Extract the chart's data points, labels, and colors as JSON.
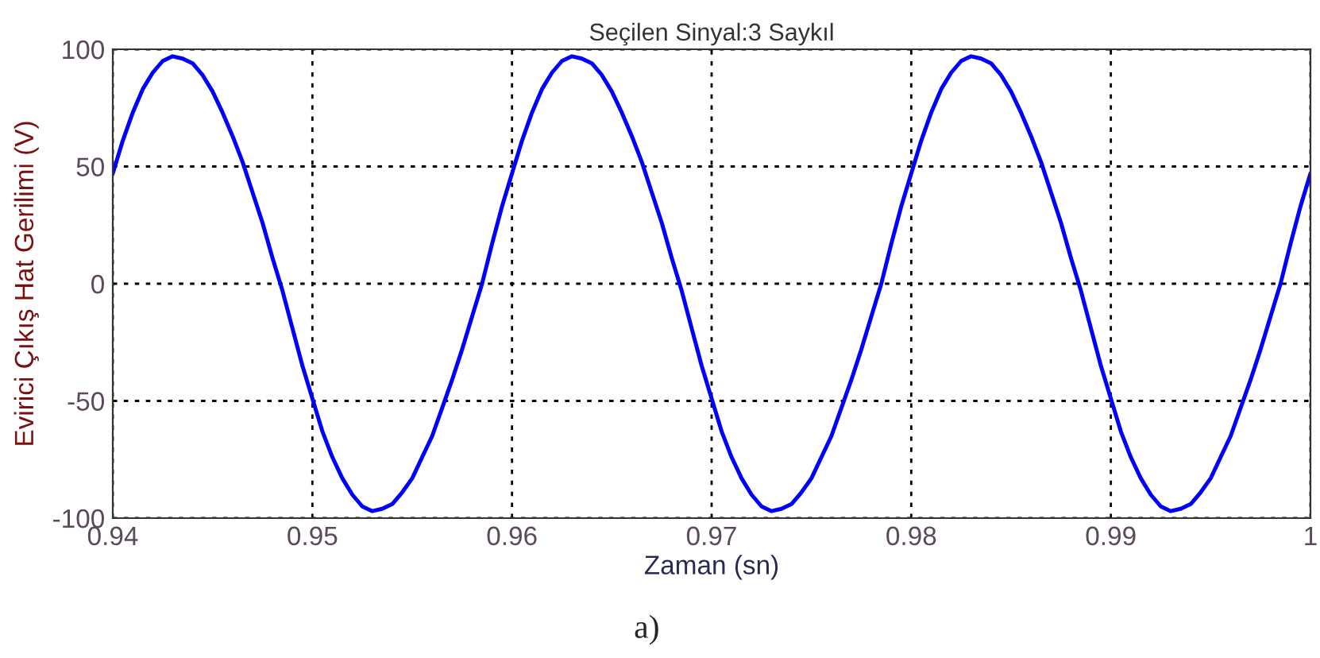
{
  "chart_data": {
    "type": "line",
    "title": "Seçilen Sinyal:3 Saykıl",
    "xlabel": "Zaman (sn)",
    "ylabel": "Evirici Çıkış Hat Gerilimi (V)",
    "x": [
      0.94,
      0.9405,
      0.941,
      0.9415,
      0.942,
      0.9425,
      0.943,
      0.9435,
      0.944,
      0.9445,
      0.945,
      0.9455,
      0.946,
      0.9465,
      0.947,
      0.9475,
      0.948,
      0.9485,
      0.949,
      0.9495,
      0.95,
      0.9505,
      0.951,
      0.9515,
      0.952,
      0.9525,
      0.953,
      0.9535,
      0.954,
      0.9545,
      0.955,
      0.9555,
      0.956,
      0.9565,
      0.957,
      0.9575,
      0.958,
      0.9585,
      0.959,
      0.9595,
      0.96,
      0.9605,
      0.961,
      0.9615,
      0.962,
      0.9625,
      0.963,
      0.9635,
      0.964,
      0.9645,
      0.965,
      0.9655,
      0.966,
      0.9665,
      0.967,
      0.9675,
      0.968,
      0.9685,
      0.969,
      0.9695,
      0.97,
      0.9705,
      0.971,
      0.9715,
      0.972,
      0.9725,
      0.973,
      0.9735,
      0.974,
      0.9745,
      0.975,
      0.9755,
      0.976,
      0.9765,
      0.977,
      0.9775,
      0.978,
      0.9785,
      0.979,
      0.9795,
      0.98,
      0.9805,
      0.981,
      0.9815,
      0.982,
      0.9825,
      0.983,
      0.9835,
      0.984,
      0.9845,
      0.985,
      0.9855,
      0.986,
      0.9865,
      0.987,
      0.9875,
      0.988,
      0.9885,
      0.989,
      0.9895,
      0.99,
      0.9905,
      0.991,
      0.9915,
      0.992,
      0.9925,
      0.993,
      0.9935,
      0.994,
      0.9945,
      0.995,
      0.9955,
      0.996,
      0.9965,
      0.997,
      0.9975,
      0.998,
      0.9985,
      0.999,
      0.9995,
      1.0
    ],
    "series": [
      {
        "color": "#0000ff",
        "values": [
          47,
          61,
          73,
          83,
          90,
          95,
          97,
          96,
          94,
          89,
          82,
          73,
          63,
          52,
          39,
          26,
          11,
          -3,
          -19,
          -35,
          -49,
          -63,
          -74,
          -83,
          -90,
          -95,
          -97,
          -96,
          -94,
          -89,
          -83,
          -74,
          -65,
          -53,
          -41,
          -28,
          -14,
          0,
          17,
          33,
          47,
          61,
          73,
          83,
          90,
          95,
          97,
          96,
          94,
          89,
          82,
          73,
          63,
          52,
          39,
          26,
          11,
          -3,
          -19,
          -35,
          -49,
          -63,
          -74,
          -83,
          -90,
          -95,
          -97,
          -96,
          -94,
          -89,
          -83,
          -74,
          -65,
          -53,
          -41,
          -28,
          -14,
          0,
          17,
          33,
          47,
          61,
          73,
          83,
          90,
          95,
          97,
          96,
          94,
          89,
          82,
          73,
          63,
          52,
          39,
          26,
          11,
          -3,
          -19,
          -35,
          -49,
          -63,
          -74,
          -83,
          -90,
          -95,
          -97,
          -96,
          -94,
          -89,
          -83,
          -74,
          -65,
          -53,
          -41,
          -28,
          -14,
          0,
          17,
          33,
          47
        ]
      }
    ],
    "xlim": [
      0.94,
      1.0
    ],
    "xticks": [
      0.94,
      0.95,
      0.96,
      0.97,
      0.98,
      0.99,
      1
    ],
    "ylim": [
      -100,
      100
    ],
    "yticks": [
      -100,
      -50,
      0,
      50,
      100
    ],
    "grid": true,
    "line_style": "solid",
    "annotations": [
      "a)"
    ]
  }
}
